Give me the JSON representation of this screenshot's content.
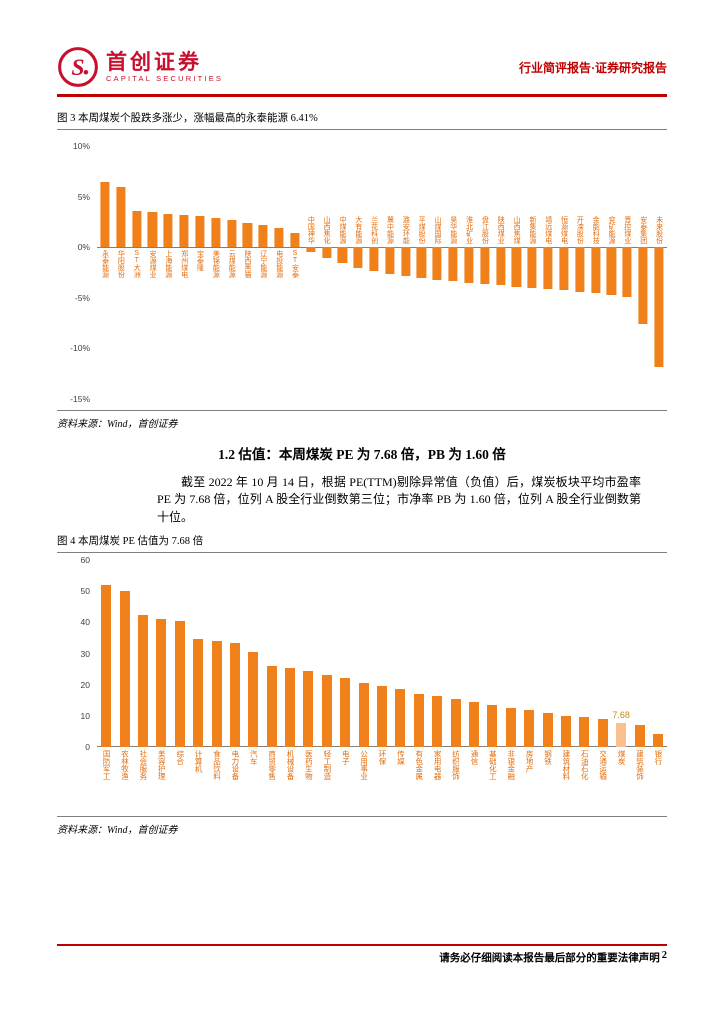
{
  "header": {
    "brand_cn": "首创证券",
    "brand_en": "CAPITAL SECURITIES",
    "report_type": "行业简评报告·证券研究报告"
  },
  "figure3": {
    "caption": "图 3 本周煤炭个股跌多涨少，涨幅最高的永泰能源 6.41%",
    "source": "资料来源：Wind，首创证券"
  },
  "section": {
    "heading": "1.2 估值：本周煤炭 PE 为 7.68 倍，PB 为 1.60 倍",
    "paragraph": "截至 2022 年 10 月 14 日，根据 PE(TTM)剔除异常值（负值）后，煤炭板块平均市盈率 PE 为 7.68 倍，位列 A 股全行业倒数第三位；市净率 PB 为 1.60 倍，位列 A 股全行业倒数第十位。"
  },
  "figure4": {
    "caption": "图 4 本周煤炭 PE 估值为 7.68 倍",
    "source": "资料来源：Wind，首创证券"
  },
  "footer": {
    "disclaimer": "请务必仔细阅读本报告最后部分的重要法律声明",
    "page": "2"
  },
  "colors": {
    "accent_red": "#C00000",
    "bar_orange": "#F0801A",
    "highlight_yellow": "#FAC090"
  },
  "chart_data": [
    {
      "type": "bar",
      "title": "本周煤炭个股涨跌幅（%）",
      "label_position": "axis",
      "bar_color": "#F0801A",
      "ylim": [
        -15,
        10
      ],
      "yticks": [
        10,
        5,
        0,
        -5,
        -10,
        -15
      ],
      "ytick_labels": [
        "10%",
        "5%",
        "0%",
        "-5%",
        "-10%",
        "-15%"
      ],
      "categories": [
        "永泰能源",
        "华阳股份",
        "ST大洲",
        "安源煤业",
        "上海能源",
        "郑州煤电",
        "宝泰隆",
        "美锦能源",
        "云煤能源",
        "陕西黑猫",
        "辽宁能源",
        "电投能源",
        "ST安泰",
        "中国神华",
        "山西焦化",
        "中煤能源",
        "大有能源",
        "兰花科创",
        "冀中能源",
        "潞安环能",
        "平煤股份",
        "山煤国际",
        "昊华能源",
        "淮北矿业",
        "盘江股份",
        "陕西煤业",
        "山西焦煤",
        "新集能源",
        "靖远煤电",
        "恒源煤电",
        "开滦股份",
        "金能科技",
        "兖矿能源",
        "晋控煤业",
        "安泰集团",
        "未来股份"
      ],
      "values": [
        6.41,
        5.92,
        3.62,
        3.48,
        3.31,
        3.2,
        3.12,
        2.85,
        2.66,
        2.41,
        2.18,
        1.86,
        1.42,
        -0.52,
        -1.05,
        -1.58,
        -2.04,
        -2.35,
        -2.61,
        -2.84,
        -3.05,
        -3.22,
        -3.38,
        -3.52,
        -3.65,
        -3.78,
        -3.9,
        -4.02,
        -4.12,
        -4.25,
        -4.38,
        -4.52,
        -4.68,
        -4.95,
        -7.55,
        -11.86
      ]
    },
    {
      "type": "bar",
      "title": "A股各行业PE(TTM)",
      "label_position": "below",
      "bar_color": "#F0801A",
      "highlight_index": 28,
      "highlight_color": "#FAC090",
      "data_label": {
        "index": 28,
        "text": "7.68"
      },
      "ylim": [
        0,
        60
      ],
      "yticks": [
        0,
        10,
        20,
        30,
        40,
        50,
        60
      ],
      "ytick_labels": [
        "0",
        "10",
        "20",
        "30",
        "40",
        "50",
        "60"
      ],
      "categories": [
        "国防军工",
        "农林牧渔",
        "社会服务",
        "美容护理",
        "综合",
        "计算机",
        "食品饮料",
        "电力设备",
        "汽车",
        "商贸零售",
        "机械设备",
        "医药生物",
        "轻工制造",
        "电子",
        "公用事业",
        "环保",
        "传媒",
        "有色金属",
        "家用电器",
        "纺织服饰",
        "通信",
        "基础化工",
        "非银金融",
        "房地产",
        "钢铁",
        "建筑材料",
        "石油石化",
        "交通运输",
        "煤炭",
        "建筑装饰",
        "银行"
      ],
      "values": [
        52,
        50,
        42.5,
        41,
        40.5,
        34.5,
        34,
        33.5,
        30.5,
        26,
        25.5,
        24.5,
        23,
        22,
        20.5,
        19.5,
        18.5,
        17,
        16.5,
        15.5,
        14.5,
        13.5,
        12.5,
        12,
        11,
        10,
        9.5,
        9,
        7.68,
        7,
        4.2
      ]
    }
  ]
}
